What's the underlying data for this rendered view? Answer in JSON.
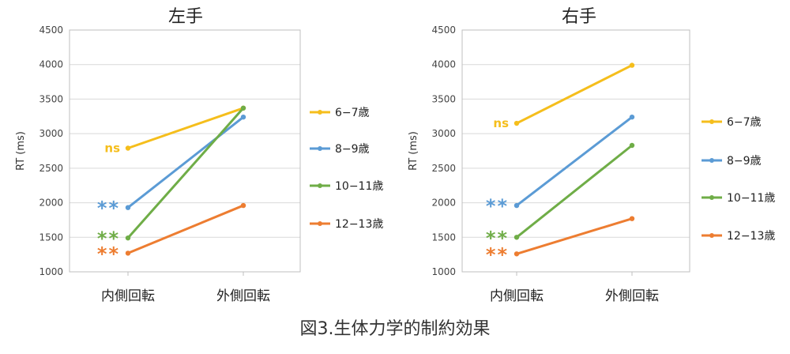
{
  "caption": "図3.生体力学的制約効果",
  "chart_data": [
    {
      "type": "line",
      "title": "左手",
      "ylabel": "RT (ms)",
      "xlabel": "",
      "categories": [
        "内側回転",
        "外側回転"
      ],
      "ylim": [
        1000,
        4500
      ],
      "yticks": [
        1000,
        1500,
        2000,
        2500,
        3000,
        3500,
        4000,
        4500
      ],
      "grid": true,
      "legend": "right",
      "series": [
        {
          "name": "6−7歳",
          "color": "#F5BE1C",
          "values": [
            2790,
            3370
          ],
          "annotation": "ns"
        },
        {
          "name": "8−9歳",
          "color": "#5B9BD5",
          "values": [
            1930,
            3240
          ],
          "annotation": "**"
        },
        {
          "name": "10−11歳",
          "color": "#6FAD47",
          "values": [
            1490,
            3370
          ],
          "annotation": "**"
        },
        {
          "name": "12−13歳",
          "color": "#ED7D31",
          "values": [
            1270,
            1960
          ],
          "annotation": "**"
        }
      ]
    },
    {
      "type": "line",
      "title": "右手",
      "ylabel": "RT (ms)",
      "xlabel": "",
      "categories": [
        "内側回転",
        "外側回転"
      ],
      "ylim": [
        1000,
        4500
      ],
      "yticks": [
        1000,
        1500,
        2000,
        2500,
        3000,
        3500,
        4000,
        4500
      ],
      "grid": true,
      "legend": "right",
      "series": [
        {
          "name": "6−7歳",
          "color": "#F5BE1C",
          "values": [
            3150,
            3990
          ],
          "annotation": "ns"
        },
        {
          "name": "8−9歳",
          "color": "#5B9BD5",
          "values": [
            1960,
            3240
          ],
          "annotation": "**"
        },
        {
          "name": "10−11歳",
          "color": "#6FAD47",
          "values": [
            1500,
            2830
          ],
          "annotation": "**"
        },
        {
          "name": "12−13歳",
          "color": "#ED7D31",
          "values": [
            1260,
            1770
          ],
          "annotation": "**"
        }
      ]
    }
  ]
}
